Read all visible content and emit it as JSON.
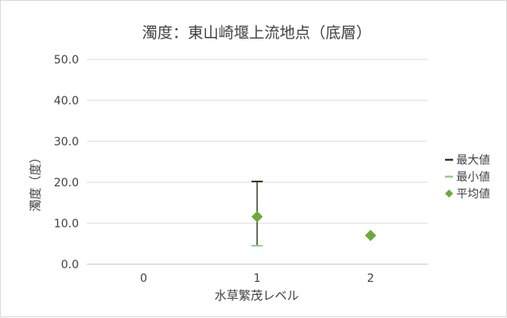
{
  "chart_data": {
    "type": "scatter",
    "title": "濁度：東山崎堰上流地点（底層）",
    "xlabel": "水草繁茂レベル",
    "ylabel": "濁度（度）",
    "categories": [
      "0",
      "1",
      "2"
    ],
    "ylim": [
      0,
      50
    ],
    "yticks": [
      "0.0",
      "10.0",
      "20.0",
      "30.0",
      "40.0",
      "50.0"
    ],
    "grid": true,
    "legend_position": "right",
    "series": [
      {
        "name": "最大値",
        "color": "#2d3a1e",
        "marker": "dash",
        "values": [
          null,
          20.2,
          null
        ]
      },
      {
        "name": "最小値",
        "color": "#8fd08a",
        "marker": "dash",
        "values": [
          null,
          4.5,
          null
        ]
      },
      {
        "name": "平均値",
        "color": "#6aaa3a",
        "marker": "diamond",
        "values": [
          null,
          11.6,
          7.0
        ]
      }
    ]
  }
}
